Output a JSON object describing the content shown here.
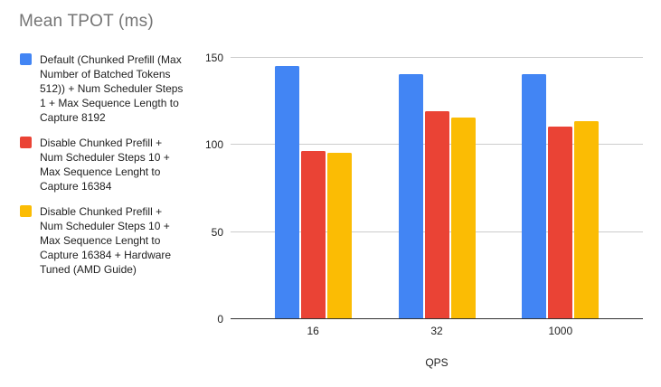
{
  "title": "Mean TPOT (ms)",
  "legend": {
    "items": [
      {
        "label": "Default (Chunked Prefill (Max\nNumber of Batched Tokens\n512)) + Num Scheduler Steps\n1 + Max Sequence Length to\nCapture 8192"
      },
      {
        "label": "Disable Chunked Prefill +\nNum Scheduler Steps 10 +\nMax Sequence Lenght to\nCapture 16384"
      },
      {
        "label": "Disable Chunked Prefill +\nNum Scheduler Steps 10 +\nMax Sequence Lenght to\nCapture 16384 + Hardware\nTuned (AMD Guide)"
      }
    ]
  },
  "chart_data": {
    "type": "bar",
    "title": "Mean TPOT (ms)",
    "xlabel": "QPS",
    "ylabel": "",
    "categories": [
      "16",
      "32",
      "1000"
    ],
    "series": [
      {
        "name": "Default (Chunked Prefill (Max Number of Batched Tokens 512)) + Num Scheduler Steps 1 + Max Sequence Length to Capture 8192",
        "color": "#4285f4",
        "values": [
          145,
          140,
          140
        ]
      },
      {
        "name": "Disable Chunked Prefill + Num Scheduler Steps 10 + Max Sequence Lenght to Capture 16384",
        "color": "#ea4335",
        "values": [
          96,
          119,
          110
        ]
      },
      {
        "name": "Disable Chunked Prefill + Num Scheduler Steps 10 + Max Sequence Lenght to Capture 16384 + Hardware Tuned (AMD Guide)",
        "color": "#fbbc04",
        "values": [
          95,
          115,
          113
        ]
      }
    ],
    "yticks": [
      0,
      50,
      100,
      150
    ],
    "ylim": [
      0,
      154
    ],
    "grid": true,
    "legend_position": "left",
    "colors": {
      "grid": "#cccccc",
      "axis": "#333333",
      "title_text": "#757575",
      "label_text": "#212121"
    }
  }
}
